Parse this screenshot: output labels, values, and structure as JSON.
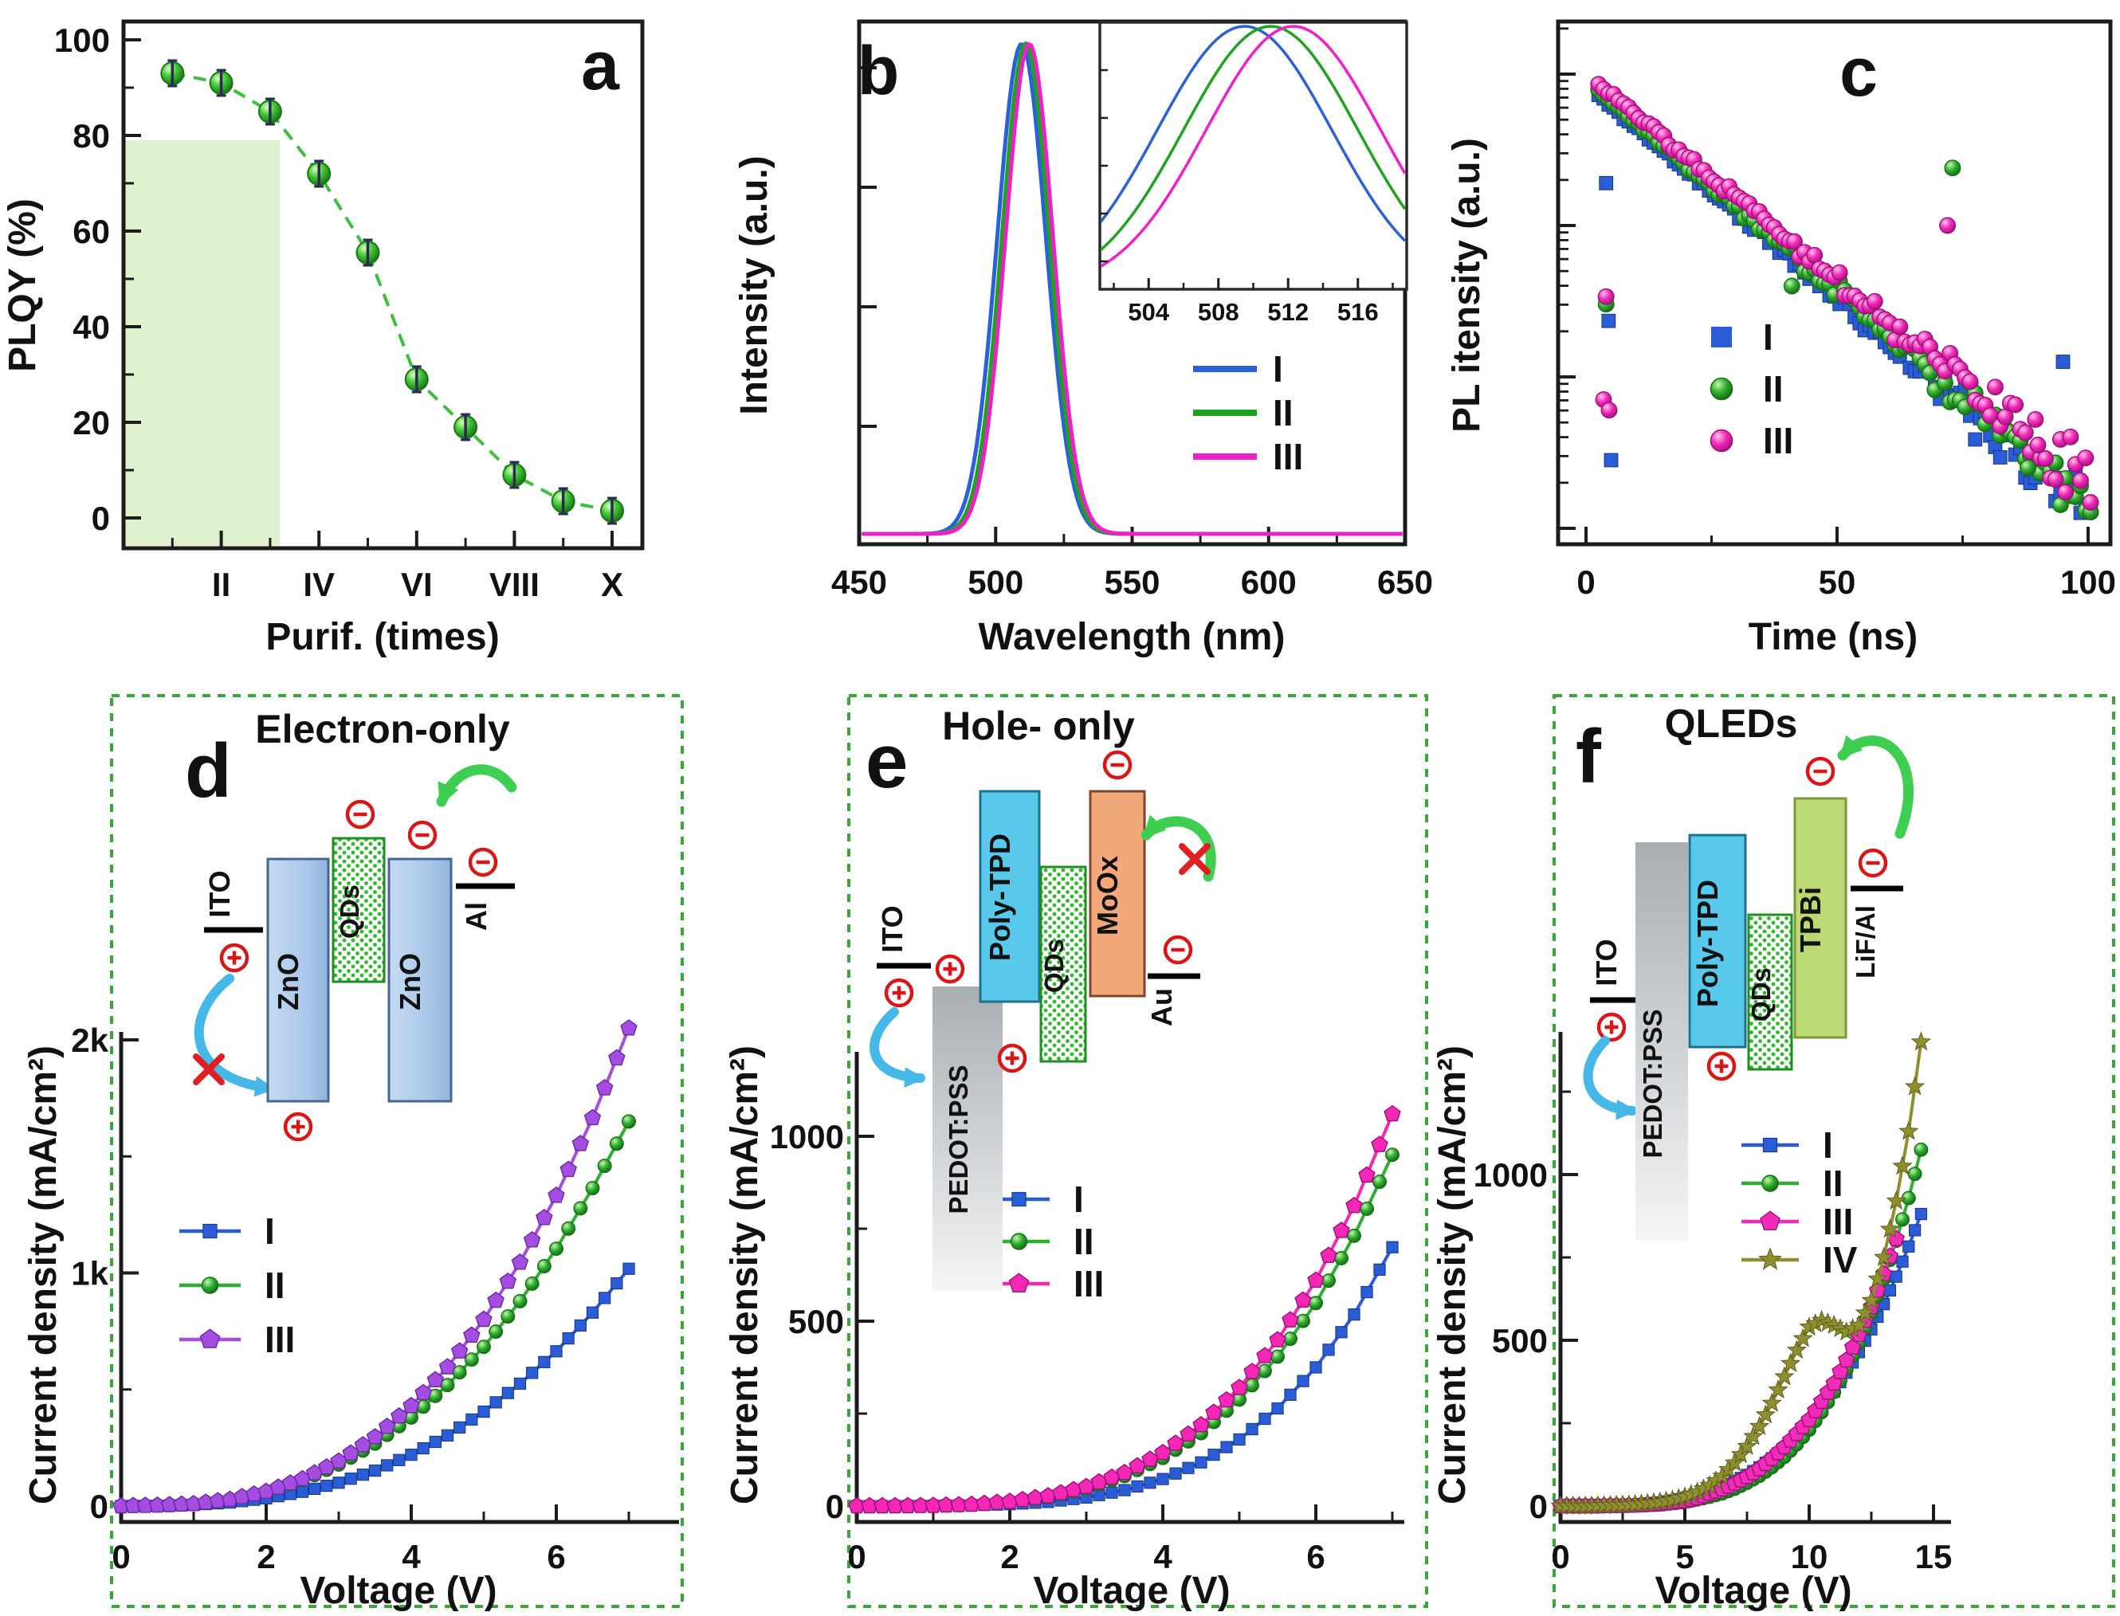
{
  "figure_type": "six-panel scientific figure (QD purification, PL, carrier-only devices, QLEDs)",
  "colors": {
    "blue": "#2a5cd8",
    "green": "#2fae2f",
    "magenta": "#f02cb8",
    "magenta2": "#f428b4",
    "violet": "#a44de0",
    "olive": "#8f8f2f",
    "line_green": "#3dbf3d",
    "shade": "#def2cd",
    "panel_border": "#3aa63a",
    "electron_hole_red": "#d81818",
    "arrow_green": "#3ecf52",
    "arrow_cyan": "#45b8e8",
    "zno": "#aac8ea",
    "qds_dot": "#2db82d",
    "poly_tpd": "#58c9ea",
    "moox": "#f3a87c",
    "tpbi": "#bcd973",
    "pedot": "#c9ccd0"
  },
  "chart_data": [
    {
      "id": "a",
      "panel_letter": "a",
      "type": "scatter",
      "title": "",
      "xlabel": "Purif. (times)",
      "ylabel": "PLQY (%)",
      "x_tick_labels": [
        "II",
        "IV",
        "VI",
        "VIII",
        "X"
      ],
      "x_tick_values": [
        2,
        4,
        6,
        8,
        10
      ],
      "x_minor_values": [
        1,
        3,
        5,
        7,
        9
      ],
      "yticks": [
        0,
        20,
        40,
        60,
        80,
        100
      ],
      "ylim": [
        0,
        100
      ],
      "xlim": [
        0,
        10.6
      ],
      "shaded_region": {
        "x0": 0,
        "x1": 3.2,
        "y0": 0,
        "y1": 79,
        "color": "#def2cd"
      },
      "series": [
        {
          "name": "PLQY",
          "marker": "green-sphere",
          "line_color": "#3dbf3d",
          "error_bar": 2.5,
          "x": [
            1,
            2,
            3,
            4,
            5,
            6,
            7,
            8,
            9,
            10
          ],
          "y": [
            93,
            91,
            85,
            72,
            55.5,
            29,
            19,
            9,
            3.5,
            1.5
          ]
        }
      ]
    },
    {
      "id": "b",
      "panel_letter": "b",
      "type": "line",
      "title": "",
      "xlabel": "Wavelength (nm)",
      "ylabel": "Intensity (a.u.)",
      "xticks": [
        450,
        500,
        550,
        600,
        650
      ],
      "x_minor": [
        475,
        525,
        575,
        625
      ],
      "legend": [
        "I",
        "II",
        "III"
      ],
      "series": [
        {
          "name": "I",
          "color": "#2a60d8",
          "peak_nm": 509.5,
          "sigma_nm": 8.9
        },
        {
          "name": "II",
          "color": "#1fa31f",
          "peak_nm": 511.0,
          "sigma_nm": 8.7
        },
        {
          "name": "III",
          "color": "#f020c8",
          "peak_nm": 512.3,
          "sigma_nm": 8.7
        }
      ],
      "inset": {
        "xticks": [
          504,
          508,
          512,
          516
        ],
        "xlim": [
          501.2,
          518.8
        ],
        "sigma_nm": 5.0
      }
    },
    {
      "id": "c",
      "panel_letter": "c",
      "type": "scatter-log",
      "title": "",
      "xlabel": "Time (ns)",
      "ylabel": "PL itensity (a.u.)",
      "xticks": [
        0,
        50,
        100
      ],
      "x_minor": [
        25,
        75
      ],
      "t_range": [
        2.5,
        101
      ],
      "decades": 3,
      "legend": [
        "I",
        "II",
        "III"
      ],
      "series": [
        {
          "name": "I",
          "marker": "square",
          "color": "#2a5cd8",
          "log_start": -0.07,
          "decay_per_ns": 0.0282
        },
        {
          "name": "II",
          "marker": "circle",
          "color": "#2fae2f",
          "log_start": -0.035,
          "decay_per_ns": 0.028
        },
        {
          "name": "III",
          "marker": "circle",
          "color": "#f02cb8",
          "log_start": 0.0,
          "decay_per_ns": 0.0272
        }
      ],
      "outliers": [
        [
          0,
          4,
          -0.72
        ],
        [
          0,
          4.5,
          -1.63
        ],
        [
          1,
          4,
          -1.52
        ],
        [
          2,
          4,
          -1.47
        ],
        [
          2,
          3.5,
          -2.15
        ],
        [
          2,
          4.6,
          -2.22
        ],
        [
          0,
          5,
          -2.55
        ],
        [
          1,
          41,
          -1.4
        ],
        [
          1,
          73,
          -0.62
        ],
        [
          2,
          72,
          -1.0
        ],
        [
          1,
          88,
          -2.6
        ],
        [
          2,
          90,
          -2.45
        ],
        [
          0,
          95,
          -1.9
        ]
      ]
    },
    {
      "id": "d",
      "panel_letter": "d",
      "type": "jv",
      "title": "Electron-only",
      "xlabel": "Voltage (V)",
      "ylabel": "Current density (mA/cm²)",
      "xticks": [
        0,
        2,
        4,
        6
      ],
      "x_minor": [
        1,
        3,
        5,
        7
      ],
      "ytick_values": [
        0,
        1000,
        2000
      ],
      "ytick_labels": [
        "0",
        "1k",
        "2k"
      ],
      "y_minor": [
        500,
        1500
      ],
      "v_step": 0.5,
      "legend": [
        "I",
        "II",
        "III"
      ],
      "schematic": {
        "left_electrode": "ITO",
        "layer1": "ZnO",
        "layer2": "QDs",
        "layer3": "ZnO",
        "right_electrode": "Al"
      },
      "series": [
        {
          "name": "I",
          "marker": "square",
          "color": "#2a5cd8",
          "j": [
            0,
            1,
            5,
            15,
            33,
            61,
            100,
            152,
            220,
            303,
            405,
            525,
            664,
            830,
            1018
          ]
        },
        {
          "name": "II",
          "marker": "circle",
          "color": "#2fae2f",
          "j": [
            0,
            2,
            10,
            29,
            61,
            110,
            178,
            268,
            380,
            519,
            683,
            879,
            1104,
            1364,
            1650
          ]
        },
        {
          "name": "III",
          "marker": "pentagon",
          "color": "#a44de0",
          "j": [
            0,
            3,
            9,
            28,
            62,
            116,
            192,
            296,
            430,
            596,
            800,
            1045,
            1332,
            1665,
            2050
          ]
        }
      ]
    },
    {
      "id": "e",
      "panel_letter": "e",
      "type": "jv",
      "title": "Hole- only",
      "xlabel": "Voltage (V)",
      "ylabel": "Current density (mA/cm²)",
      "xticks": [
        0,
        2,
        4,
        6
      ],
      "x_minor": [
        1,
        3,
        5,
        7
      ],
      "ytick_values": [
        0,
        500,
        1000
      ],
      "ytick_labels": [
        "0",
        "500",
        "1000"
      ],
      "y_minor": [
        250,
        750,
        1250
      ],
      "v_step": 0.5,
      "legend": [
        "I",
        "II",
        "III"
      ],
      "schematic": {
        "left_electrode": "ITO",
        "hil": "PEDOT:PSS",
        "htl": "Poly-TPD",
        "eml": "QDs",
        "etl": "MoOx",
        "right_electrode": "Au"
      },
      "series": [
        {
          "name": "I",
          "marker": "square",
          "color": "#2a5cd8",
          "j": [
            0,
            0,
            1,
            2,
            5,
            11,
            23,
            43,
            73,
            118,
            180,
            264,
            375,
            518,
            700
          ]
        },
        {
          "name": "II",
          "marker": "circle",
          "color": "#2fae2f",
          "j": [
            0,
            0,
            1,
            4,
            11,
            24,
            47,
            81,
            130,
            197,
            288,
            404,
            549,
            731,
            950
          ]
        },
        {
          "name": "III",
          "marker": "pentagon",
          "color": "#f428b4",
          "j": [
            0,
            0,
            1,
            4,
            12,
            27,
            52,
            90,
            144,
            219,
            320,
            449,
            610,
            812,
            1060
          ]
        }
      ]
    },
    {
      "id": "f",
      "panel_letter": "f",
      "type": "jv",
      "title": "QLEDs",
      "xlabel": "Voltage (V)",
      "ylabel": "Current density (mA/cm²)",
      "xticks": [
        0,
        5,
        10,
        15
      ],
      "x_minor": [
        2.5,
        7.5,
        12.5
      ],
      "ytick_values": [
        0,
        500,
        1000
      ],
      "ytick_labels": [
        "0",
        "500",
        "1000"
      ],
      "y_minor": [
        250,
        750,
        1250
      ],
      "v_step": 0.5,
      "legend": [
        "I",
        "II",
        "III",
        "IV"
      ],
      "schematic": {
        "left_electrode": "ITO",
        "hil": "PEDOT:PSS",
        "htl": "Poly-TPD",
        "eml": "QDs",
        "etl": "TPBi",
        "right_electrode": "LiF/Al"
      },
      "series": [
        {
          "name": "I",
          "marker": "square",
          "color": "#2a5cd8",
          "j": [
            0,
            0,
            0,
            0,
            1,
            2,
            4,
            8,
            11,
            17,
            24,
            33,
            44,
            58,
            75,
            94,
            117,
            144,
            175,
            210,
            250,
            295,
            345,
            402,
            464,
            533,
            609,
            692,
            783,
            881
          ]
        },
        {
          "name": "II",
          "marker": "circle",
          "color": "#2fae2f",
          "j": [
            0,
            0,
            0,
            0,
            0,
            1,
            2,
            3,
            5,
            9,
            13,
            20,
            28,
            38,
            52,
            70,
            91,
            117,
            148,
            186,
            230,
            283,
            344,
            413,
            491,
            582,
            685,
            800,
            929,
            1075
          ]
        },
        {
          "name": "III",
          "marker": "pentagon",
          "color": "#f02cb8",
          "j": [
            0,
            0,
            0,
            0,
            1,
            1,
            2,
            4,
            6,
            10,
            15,
            24,
            38,
            51,
            68,
            88,
            112,
            143,
            178,
            218,
            260,
            315,
            370,
            440,
            517,
            600,
            700,
            806
          ]
        },
        {
          "name": "IV",
          "marker": "star",
          "color": "#8f8f2f",
          "j": [
            0,
            0,
            0,
            1,
            2,
            3,
            5,
            8,
            12,
            18,
            28,
            42,
            62,
            90,
            130,
            180,
            240,
            310,
            390,
            470,
            540,
            560,
            545,
            525,
            545,
            620,
            750,
            920,
            1130,
            1400
          ]
        }
      ]
    }
  ]
}
